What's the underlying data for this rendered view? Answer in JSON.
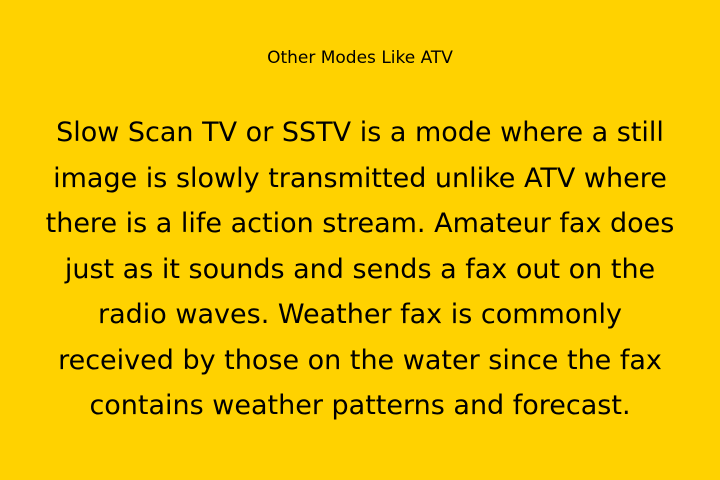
{
  "slide": {
    "background_color": "#FFD200",
    "text_color": "#000000",
    "title": "Other Modes Like ATV",
    "body_lines": [
      "Slow Scan TV or SSTV is a mode where a still",
      "image is slowly transmitted unlike ATV where",
      "there is a life action stream. Amateur fax does",
      "just as it sounds and sends a fax out on the",
      "radio waves. Weather fax is commonly",
      "received by those on the water since the fax",
      "contains weather patterns and forecast."
    ]
  }
}
